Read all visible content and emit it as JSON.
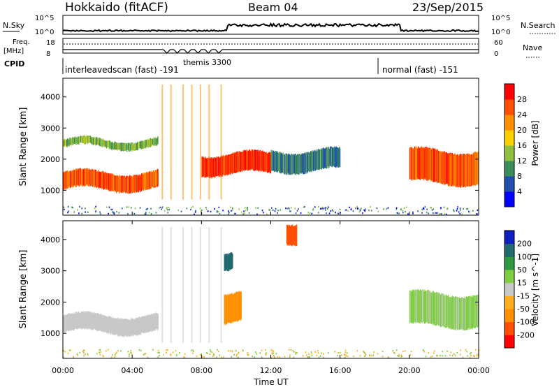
{
  "header": {
    "title": "Hokkaido (fitACF)",
    "beam": "Beam 04",
    "date": "23/Sep/2015"
  },
  "panels": {
    "nsky_label": "N.Sky",
    "nsky_ticks": [
      "10^5",
      "10^0"
    ],
    "nsearch_label": "N.Search",
    "nsearch_ticks": [
      "10^5",
      "10^0"
    ],
    "freq_label_1": "Freq.",
    "freq_label_2": "[MHz]",
    "freq_ticks": [
      "18",
      "8"
    ],
    "nave_label": "Nave",
    "nave_ticks": [
      "60",
      "0"
    ],
    "cpid_label": "CPID",
    "cpid_segments": [
      {
        "label": "interleavedscan (fast) -191"
      },
      {
        "label": "themis 3300"
      },
      {
        "label": "normal (fast) -151"
      }
    ]
  },
  "axes": {
    "ylabel": "Slant Range [km]",
    "xlabel": "Time UT",
    "yticks": [
      "4000",
      "3000",
      "2000",
      "1000"
    ],
    "xticks": [
      "00:00",
      "04:00",
      "08:00",
      "12:00",
      "16:00",
      "20:00",
      "00:00"
    ]
  },
  "colors": {
    "power_scale": [
      "#0000ff",
      "#2050b0",
      "#3b8f5c",
      "#90c040",
      "#ffd000",
      "#ff9000",
      "#ff5000",
      "#ff0000"
    ],
    "velocity_scale": [
      "#ff0000",
      "#ff5000",
      "#ff9000",
      "#ffb020",
      "#c8c8c8",
      "#7fd040",
      "#2f9a40",
      "#206a70",
      "#1020c0"
    ],
    "ground_scatter": "#c8c8c8"
  },
  "chart_data": [
    {
      "type": "heatmap",
      "title": "",
      "xlabel": "Time UT",
      "ylabel": "Slant Range [km]",
      "xlim": [
        0,
        24
      ],
      "ylim": [
        200,
        4600
      ],
      "colorbar": {
        "label": "Power [dB]",
        "ticks": [
          "28",
          "24",
          "20",
          "16",
          "12",
          "8",
          "4"
        ]
      },
      "features": [
        {
          "name": "",
          "t_start": 0.0,
          "t_end": 5.5,
          "range_low": 1000,
          "range_high": 1600,
          "value": 24
        },
        {
          "name": "",
          "t_start": 0.0,
          "t_end": 5.5,
          "range_low": 2350,
          "range_high": 2650,
          "value": 12
        },
        {
          "name": "",
          "t_start": 8.0,
          "t_end": 12.0,
          "range_low": 1500,
          "range_high": 2200,
          "value": 26
        },
        {
          "name": "",
          "t_start": 12.0,
          "t_end": 16.0,
          "range_low": 1600,
          "range_high": 2300,
          "value": 8
        },
        {
          "name": "",
          "t_start": 20.0,
          "t_end": 24.0,
          "range_low": 1200,
          "range_high": 2300,
          "value": 24
        }
      ]
    },
    {
      "type": "heatmap",
      "title": "",
      "xlabel": "Time UT",
      "ylabel": "Slant Range [km]",
      "xlim": [
        0,
        24
      ],
      "ylim": [
        200,
        4600
      ],
      "colorbar": {
        "label": "Velocity [m s^-1]",
        "ticks": [
          "200",
          "100",
          "50",
          "15",
          "-15",
          "-50",
          "-100",
          "-200"
        ]
      },
      "features": [
        {
          "name": "",
          "t_start": 0.0,
          "t_end": 5.5,
          "range_low": 1000,
          "range_high": 1600,
          "value": 0
        },
        {
          "name": "",
          "t_start": 9.3,
          "t_end": 10.3,
          "range_low": 1300,
          "range_high": 2300,
          "value": -60
        },
        {
          "name": "",
          "t_start": 9.3,
          "t_end": 9.8,
          "range_low": 3000,
          "range_high": 3600,
          "value": 150
        },
        {
          "name": "",
          "t_start": 12.9,
          "t_end": 13.5,
          "range_low": 3900,
          "range_high": 4600,
          "value": -180
        },
        {
          "name": "",
          "t_start": 20.0,
          "t_end": 24.0,
          "range_low": 1200,
          "range_high": 2300,
          "value": 20
        }
      ]
    }
  ]
}
